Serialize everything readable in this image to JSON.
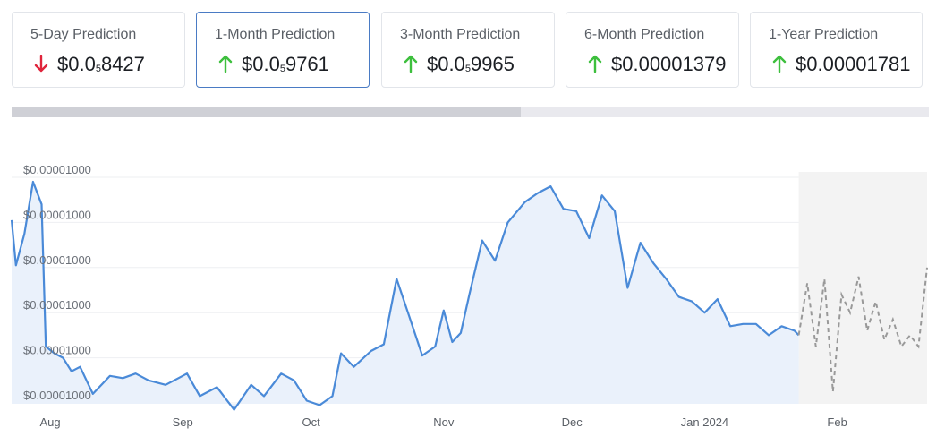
{
  "cards": [
    {
      "label": "5-Day Prediction",
      "direction": "down",
      "value_prefix": "$0.0",
      "value_sub": "5",
      "value_suffix": "8427",
      "active": false
    },
    {
      "label": "1-Month Prediction",
      "direction": "up",
      "value_prefix": "$0.0",
      "value_sub": "5",
      "value_suffix": "9761",
      "active": true
    },
    {
      "label": "3-Month Prediction",
      "direction": "up",
      "value_prefix": "$0.0",
      "value_sub": "5",
      "value_suffix": "9965",
      "active": false
    },
    {
      "label": "6-Month Prediction",
      "direction": "up",
      "value_prefix": "$0.00001379",
      "value_sub": "",
      "value_suffix": "",
      "active": false
    },
    {
      "label": "1-Year Prediction",
      "direction": "up",
      "value_prefix": "$0.00001781",
      "value_sub": "",
      "value_suffix": "",
      "active": false
    }
  ],
  "colors": {
    "up": "#3dbf3d",
    "down": "#e0243b",
    "line": "#4a8ad8",
    "area": "#eaf1fb",
    "forecast": "#999999",
    "forecast_bg": "#f3f3f3",
    "active_border": "#4a7bc4"
  },
  "scrollbar": {
    "visible_fraction": 0.555
  },
  "chart_data": {
    "type": "line",
    "title": "",
    "xlabel": "",
    "ylabel": "",
    "y_tick_labels": [
      "$0.00001000",
      "$0.00001000",
      "$0.00001000",
      "$0.00001000",
      "$0.00001000",
      "$0.00001000"
    ],
    "x_tick_labels": [
      "Aug",
      "Sep",
      "Oct",
      "Nov",
      "Dec",
      "Jan 2024",
      "Feb"
    ],
    "x_range": [
      "2023-07-23",
      "2024-02-22"
    ],
    "y_range": [
      0,
      100
    ],
    "y_units": "relative (0 = lowest gridline, 100 = highest gridline; all tick labels printed as $0.00001000)",
    "grid": true,
    "forecast_start": "2024-01-23",
    "series": [
      {
        "style": "solid",
        "x": [
          "2023-07-23",
          "2023-07-24",
          "2023-07-26",
          "2023-07-28",
          "2023-07-30",
          "2023-07-31",
          "2023-08-02",
          "2023-08-04",
          "2023-08-06",
          "2023-08-08",
          "2023-08-11",
          "2023-08-15",
          "2023-08-18",
          "2023-08-21",
          "2023-08-24",
          "2023-08-28",
          "2023-08-31",
          "2023-09-02",
          "2023-09-05",
          "2023-09-09",
          "2023-09-13",
          "2023-09-17",
          "2023-09-20",
          "2023-09-24",
          "2023-09-27",
          "2023-09-30",
          "2023-10-03",
          "2023-10-06",
          "2023-10-08",
          "2023-10-11",
          "2023-10-15",
          "2023-10-18",
          "2023-10-21",
          "2023-10-24",
          "2023-10-27",
          "2023-10-30",
          "2023-11-01",
          "2023-11-03",
          "2023-11-05",
          "2023-11-07",
          "2023-11-10",
          "2023-11-13",
          "2023-11-16",
          "2023-11-20",
          "2023-11-23",
          "2023-11-26",
          "2023-11-29",
          "2023-12-02",
          "2023-12-05",
          "2023-12-08",
          "2023-12-11",
          "2023-12-14",
          "2023-12-17",
          "2023-12-20",
          "2023-12-23",
          "2023-12-26",
          "2023-12-29",
          "2024-01-01",
          "2024-01-04",
          "2024-01-07",
          "2024-01-10",
          "2024-01-13",
          "2024-01-16",
          "2024-01-19",
          "2024-01-22",
          "2024-01-23"
        ],
        "values": [
          81,
          61,
          75,
          98,
          88,
          25,
          22,
          20,
          14,
          16,
          4,
          12,
          11,
          13,
          10,
          8,
          11,
          13,
          3,
          7,
          -3,
          8,
          3,
          13,
          10,
          1,
          -1,
          3,
          22,
          16,
          23,
          26,
          55,
          38,
          21,
          25,
          41,
          27,
          31,
          48,
          72,
          63,
          80,
          89,
          93,
          96,
          86,
          85,
          73,
          92,
          85,
          51,
          71,
          62,
          55,
          47,
          45,
          40,
          46,
          34,
          35,
          35,
          30,
          34,
          32,
          30
        ]
      },
      {
        "style": "dashed",
        "x": [
          "2024-01-23",
          "2024-01-25",
          "2024-01-27",
          "2024-01-29",
          "2024-01-31",
          "2024-02-02",
          "2024-02-04",
          "2024-02-06",
          "2024-02-08",
          "2024-02-10",
          "2024-02-12",
          "2024-02-14",
          "2024-02-16",
          "2024-02-18",
          "2024-02-20",
          "2024-02-22"
        ],
        "values": [
          30,
          53,
          25,
          55,
          5,
          48,
          40,
          56,
          32,
          45,
          28,
          37,
          25,
          30,
          25,
          60
        ]
      }
    ]
  }
}
